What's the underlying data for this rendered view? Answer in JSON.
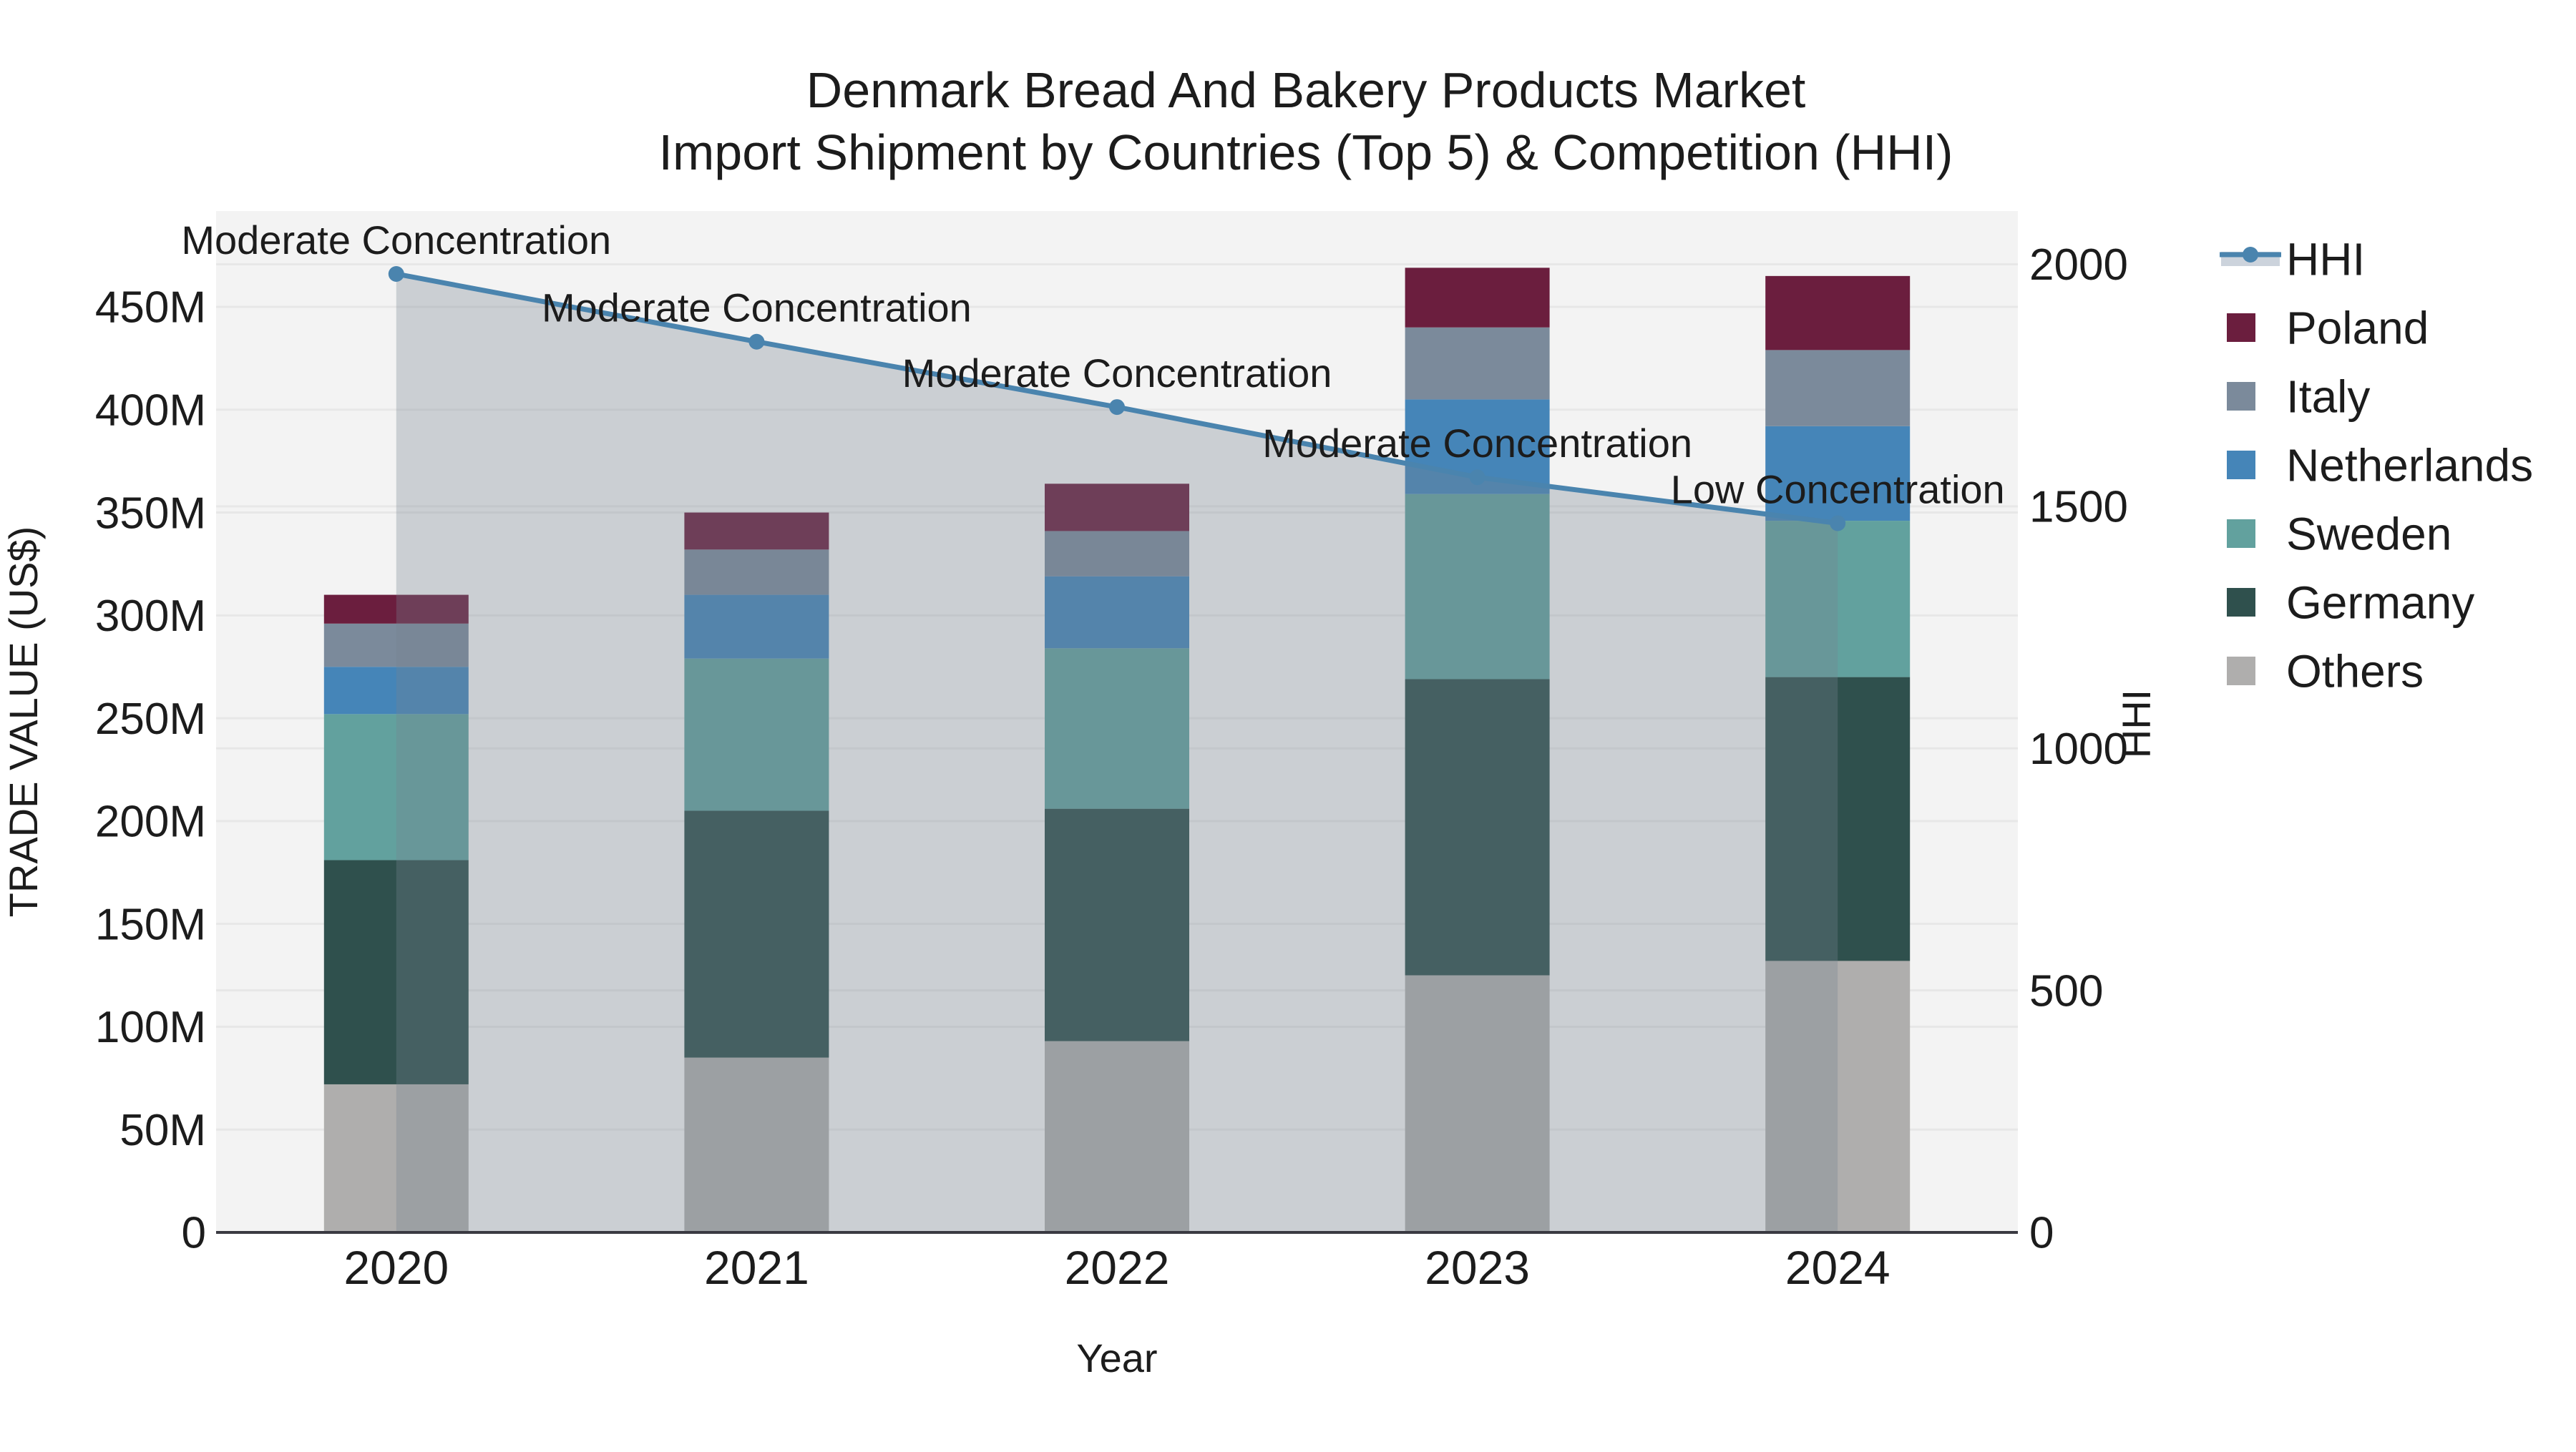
{
  "title": {
    "line1": "Denmark Bread And Bakery Products Market",
    "line2": "Import Shipment by Countries (Top 5) & Competition (HHI)"
  },
  "chart_data": {
    "type": "bar+line",
    "subtype": "stacked-bar with dual-axis line",
    "categories": [
      "2020",
      "2021",
      "2022",
      "2023",
      "2024"
    ],
    "series": [
      {
        "name": "Others",
        "color": "#AFAEAD",
        "values": [
          72,
          85,
          93,
          125,
          132
        ]
      },
      {
        "name": "Germany",
        "color": "#2F504D",
        "values": [
          109,
          120,
          113,
          144,
          138
        ]
      },
      {
        "name": "Sweden",
        "color": "#62A19E",
        "values": [
          71,
          74,
          78,
          90,
          76
        ]
      },
      {
        "name": "Netherlands",
        "color": "#4585B8",
        "values": [
          23,
          31,
          35,
          46,
          46
        ]
      },
      {
        "name": "Italy",
        "color": "#7B8A9B",
        "values": [
          21,
          22,
          22,
          35,
          37
        ]
      },
      {
        "name": "Poland",
        "color": "#6B1E3E",
        "values": [
          14,
          18,
          23,
          29,
          36
        ]
      }
    ],
    "stack_note": "series listed bottom-to-top; values in millions US$",
    "line": {
      "name": "HHI",
      "color": "#4A84AE",
      "fill_color": "rgba(119,131,144,0.32)",
      "legend_band_color": "#CCD3DC",
      "values": [
        1980,
        1840,
        1705,
        1560,
        1465
      ],
      "annotations": [
        "Moderate Concentration",
        "Moderate Concentration",
        "Moderate Concentration",
        "Moderate Concentration",
        "Low Concentration"
      ]
    },
    "left_axis": {
      "title": "TRADE VALUE (US$)",
      "tick_labels": [
        "0",
        "50M",
        "100M",
        "150M",
        "200M",
        "250M",
        "300M",
        "350M",
        "400M",
        "450M"
      ],
      "tick_values": [
        0,
        50,
        100,
        150,
        200,
        250,
        300,
        350,
        400,
        450
      ],
      "range": [
        0,
        496.6
      ]
    },
    "right_axis": {
      "title": "HHI",
      "tick_labels": [
        "0",
        "500",
        "1000",
        "1500",
        "2000"
      ],
      "tick_values": [
        0,
        500,
        1000,
        1500,
        2000
      ],
      "range": [
        0,
        2110
      ]
    },
    "x_axis": {
      "title": "Year"
    },
    "legend_position": "right",
    "grid": true,
    "plot_bg": "#F3F3F3",
    "grid_color": "#E7E7E7",
    "axisline_color": "#3A3A42"
  }
}
